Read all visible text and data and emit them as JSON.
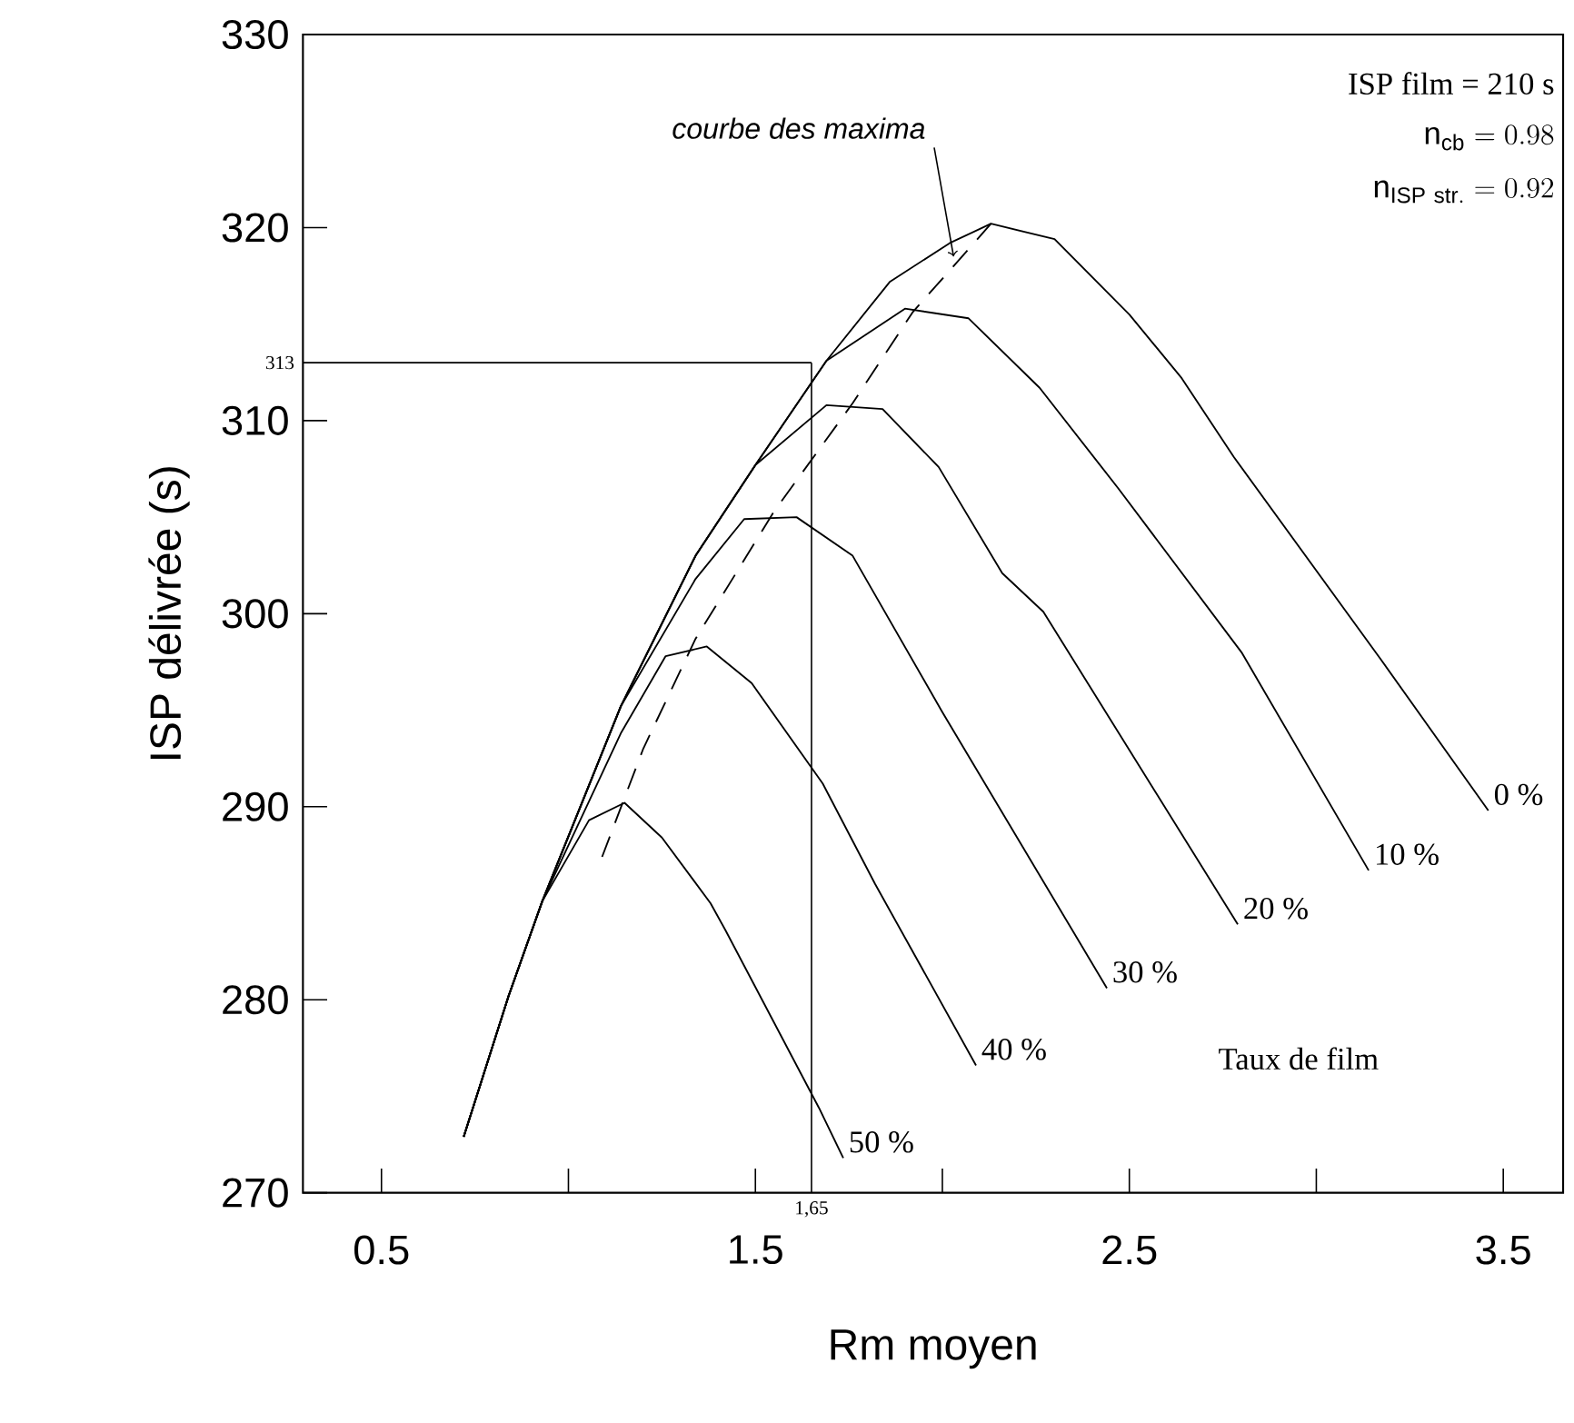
{
  "chart_data": {
    "type": "line",
    "xlabel": "Rm moyen",
    "ylabel": "ISP délivrée (s)",
    "legend_title": "Taux de film",
    "xlim": [
      0.29,
      3.66
    ],
    "ylim": [
      270,
      330
    ],
    "xticks": [
      0.5,
      {
        "value": 1,
        "label": null
      },
      1.5,
      {
        "value": 2,
        "label": null
      },
      2.5,
      {
        "value": 3,
        "label": null
      },
      3.5
    ],
    "yticks": [
      270,
      280,
      290,
      300,
      310,
      320,
      330
    ],
    "grid": false,
    "marker": "none",
    "line_style": "solid",
    "series": [
      {
        "name": "0 %",
        "color": "#000000",
        "x": [
          0.72,
          0.84,
          0.93,
          1.14,
          1.34,
          1.5,
          1.69,
          1.86,
          2.02,
          2.13,
          2.3,
          2.5,
          2.64,
          2.78,
          3.17,
          3.46
        ],
        "values": [
          272.9,
          280.2,
          285.1,
          295.2,
          303.0,
          307.7,
          313.1,
          317.2,
          319.2,
          320.2,
          319.4,
          315.5,
          312.2,
          308.1,
          297.7,
          289.8
        ]
      },
      {
        "name": "10 %",
        "color": "#000000",
        "x": [
          0.72,
          0.84,
          0.93,
          1.14,
          1.34,
          1.5,
          1.69,
          1.9,
          2.07,
          2.26,
          2.47,
          2.8,
          3.14
        ],
        "values": [
          272.9,
          280.2,
          285.1,
          295.2,
          303.0,
          307.7,
          313.1,
          315.8,
          315.3,
          311.7,
          306.5,
          298.0,
          286.7
        ]
      },
      {
        "name": "20 %",
        "color": "#000000",
        "x": [
          0.72,
          0.84,
          0.93,
          1.14,
          1.34,
          1.5,
          1.69,
          1.84,
          1.99,
          2.16,
          2.27,
          2.79
        ],
        "values": [
          272.9,
          280.2,
          285.1,
          295.2,
          303.0,
          307.7,
          310.8,
          310.6,
          307.6,
          302.1,
          300.1,
          283.9
        ]
      },
      {
        "name": "30 %",
        "color": "#000000",
        "x": [
          0.72,
          0.84,
          0.93,
          1.14,
          1.34,
          1.47,
          1.61,
          1.76,
          2.0,
          2.44
        ],
        "values": [
          272.9,
          280.2,
          285.1,
          295.2,
          301.8,
          304.9,
          305.0,
          303.0,
          294.9,
          280.6
        ]
      },
      {
        "name": "40 %",
        "color": "#000000",
        "x": [
          0.72,
          0.84,
          0.93,
          1.14,
          1.26,
          1.37,
          1.49,
          1.68,
          1.82,
          2.09
        ],
        "values": [
          272.9,
          280.2,
          285.1,
          293.8,
          297.8,
          298.3,
          296.4,
          291.2,
          286.0,
          276.6
        ]
      },
      {
        "name": "50 %",
        "color": "#000000",
        "x": [
          0.72,
          0.84,
          0.93,
          1.055,
          1.15,
          1.25,
          1.38,
          1.42,
          1.67,
          1.735
        ],
        "values": [
          272.9,
          280.2,
          285.1,
          289.3,
          290.2,
          288.4,
          285.0,
          283.6,
          274.4,
          271.8
        ]
      },
      {
        "color": "#000000",
        "line_style": "dashed",
        "x": [
          1.09,
          1.2,
          1.34,
          1.55,
          1.76,
          1.92,
          2.13
        ],
        "values": [
          287.4,
          293.0,
          298.7,
          305.3,
          310.9,
          315.6,
          320.2
        ]
      }
    ],
    "ref_lines": [
      {
        "axis": "y",
        "value": 313,
        "label": "313"
      },
      {
        "axis": "x",
        "value": 1.65,
        "label": "1,65"
      }
    ],
    "annotations": [
      "ISP film = 210 s",
      "\\mathrm{n_{cb}} = 0.98",
      "\\mathrm{n_{ISP\\ str.}} = 0.92",
      {
        "text": "courbe des maxima",
        "x": 2.03,
        "y": 318.5
      }
    ]
  }
}
